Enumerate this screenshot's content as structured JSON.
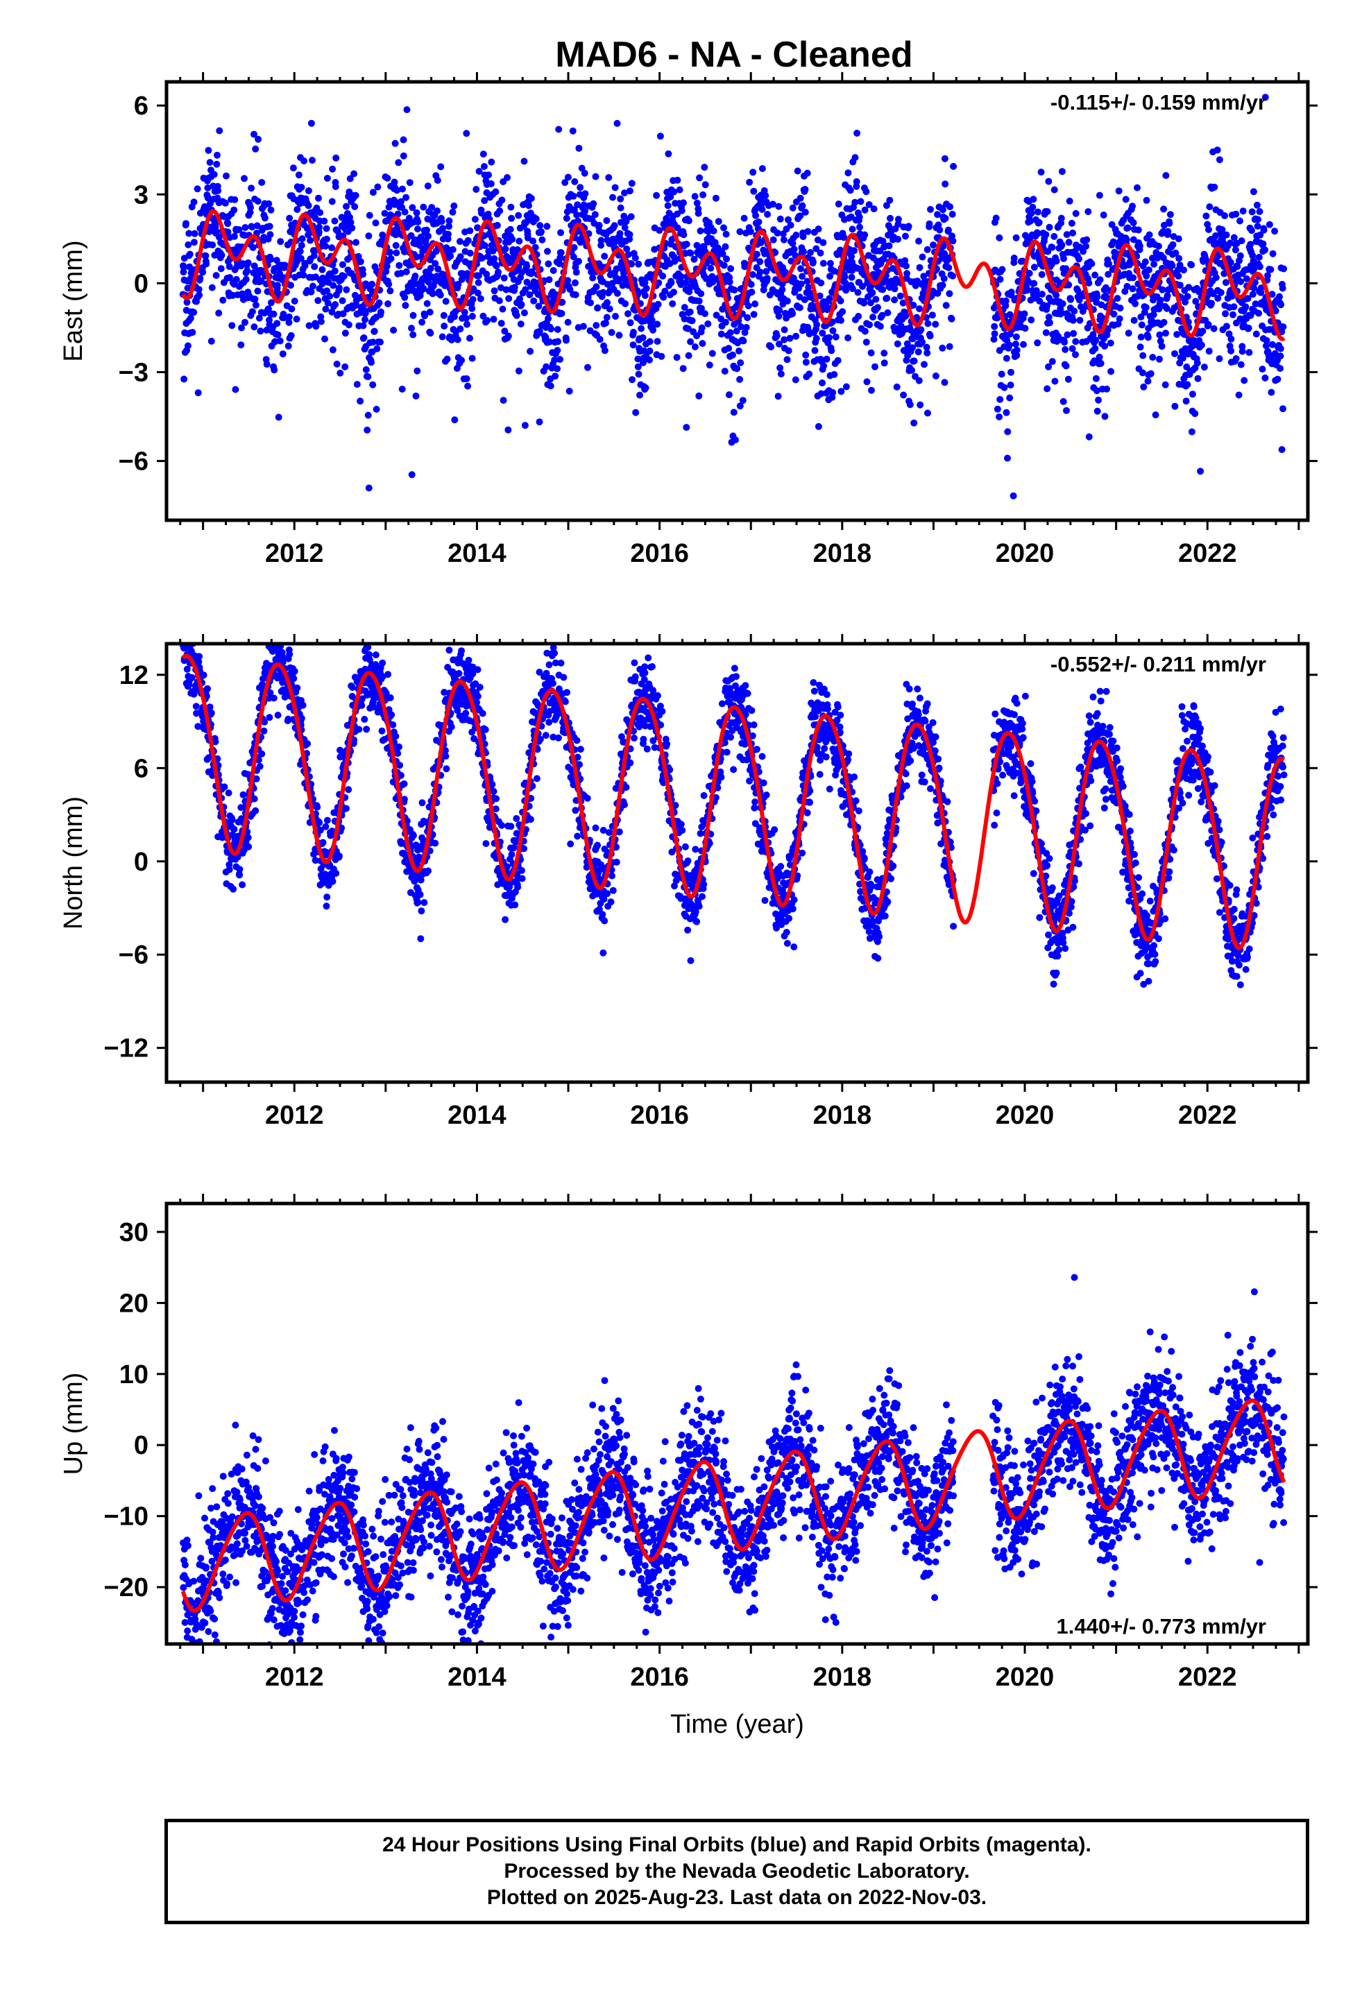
{
  "chart_data": [
    {
      "type": "scatter",
      "panel": "east",
      "title": "MAD6  - NA - Cleaned",
      "ylabel": "East (mm)",
      "xlabel": "",
      "xlim": [
        2010.6,
        2023.1
      ],
      "ylim": [
        -8.0,
        6.8
      ],
      "x_ticks": [
        2012,
        2014,
        2016,
        2018,
        2020,
        2022
      ],
      "y_ticks": [
        6,
        3,
        0,
        -3,
        -6
      ],
      "y_tick_labels": [
        "6",
        "3",
        "0",
        "−3",
        "−6"
      ],
      "rate_text": "-0.115+/- 0.159 mm/yr",
      "data_span": [
        2010.78,
        2022.84
      ],
      "gap": [
        2019.22,
        2019.65
      ],
      "series": [
        {
          "name": "Final Orbits",
          "color": "#0000ff",
          "model": {
            "offset": 0.45,
            "trend": -0.115,
            "annual_amp": 0.8,
            "annual_phase": 0.0,
            "semiannual_amp": 0.9,
            "semiannual_phase": 0.5,
            "noise": 1.25,
            "spread_bias": 0.5
          }
        },
        {
          "name": "fit",
          "color": "#ff0000",
          "model": {
            "offset": 0.45,
            "trend": -0.115,
            "annual_amp": 0.8,
            "annual_phase": 0.0,
            "semiannual_amp": 0.9,
            "semiannual_phase": 0.5
          }
        }
      ]
    },
    {
      "type": "scatter",
      "panel": "north",
      "ylabel": "North (mm)",
      "xlabel": "",
      "xlim": [
        2010.6,
        2023.1
      ],
      "ylim": [
        -14.2,
        14.0
      ],
      "x_ticks": [
        2012,
        2014,
        2016,
        2018,
        2020,
        2022
      ],
      "y_ticks": [
        12,
        6,
        0,
        -6,
        -12
      ],
      "y_tick_labels": [
        "12",
        "6",
        "0",
        "−6",
        "−12"
      ],
      "rate_text": "-0.552+/- 0.211 mm/yr",
      "data_span": [
        2010.78,
        2022.84
      ],
      "gap": [
        2019.22,
        2019.65
      ],
      "series": [
        {
          "name": "Final Orbits",
          "color": "#0000ff",
          "model": {
            "offset": 4.3,
            "trend": -0.552,
            "annual_amp": 6.2,
            "annual_phase": 2.6,
            "semiannual_amp": 0.5,
            "semiannual_phase": 0.0,
            "noise": 1.35,
            "spread_bias": 0
          }
        },
        {
          "name": "fit",
          "color": "#ff0000",
          "model": {
            "offset": 4.3,
            "trend": -0.552,
            "annual_amp": 6.2,
            "annual_phase": 2.6,
            "semiannual_amp": 0.5,
            "semiannual_phase": 0.0
          }
        }
      ]
    },
    {
      "type": "scatter",
      "panel": "up",
      "ylabel": "Up (mm)",
      "xlabel": "Time (year)",
      "xlim": [
        2010.6,
        2023.1
      ],
      "ylim": [
        -28.0,
        34.0
      ],
      "x_ticks": [
        2012,
        2014,
        2016,
        2018,
        2020,
        2022
      ],
      "y_ticks": [
        30,
        20,
        10,
        0,
        -10,
        -20
      ],
      "y_tick_labels": [
        "30",
        "20",
        "10",
        "0",
        "−10",
        "−20"
      ],
      "rate_text": "1.440+/- 0.773 mm/yr",
      "data_span": [
        2010.78,
        2022.84
      ],
      "gap": [
        2019.22,
        2019.65
      ],
      "series": [
        {
          "name": "Final Orbits",
          "color": "#0000ff",
          "model": {
            "offset": -8.5,
            "trend": 1.44,
            "annual_amp": 6.3,
            "annual_phase": -1.2,
            "semiannual_amp": 0.8,
            "semiannual_phase": 0.3,
            "noise": 4.6,
            "spread_bias": 0
          }
        },
        {
          "name": "fit",
          "color": "#ff0000",
          "model": {
            "offset": -8.5,
            "trend": 1.44,
            "annual_amp": 6.3,
            "annual_phase": -1.2,
            "semiannual_amp": 0.8,
            "semiannual_phase": 0.3
          }
        }
      ]
    }
  ],
  "footer": {
    "line1": "24 Hour Positions Using Final Orbits (blue) and Rapid Orbits (magenta).",
    "line2": "Processed by the Nevada Geodetic Laboratory.",
    "line3": "Plotted on 2025-Aug-23. Last data on 2022-Nov-03."
  }
}
